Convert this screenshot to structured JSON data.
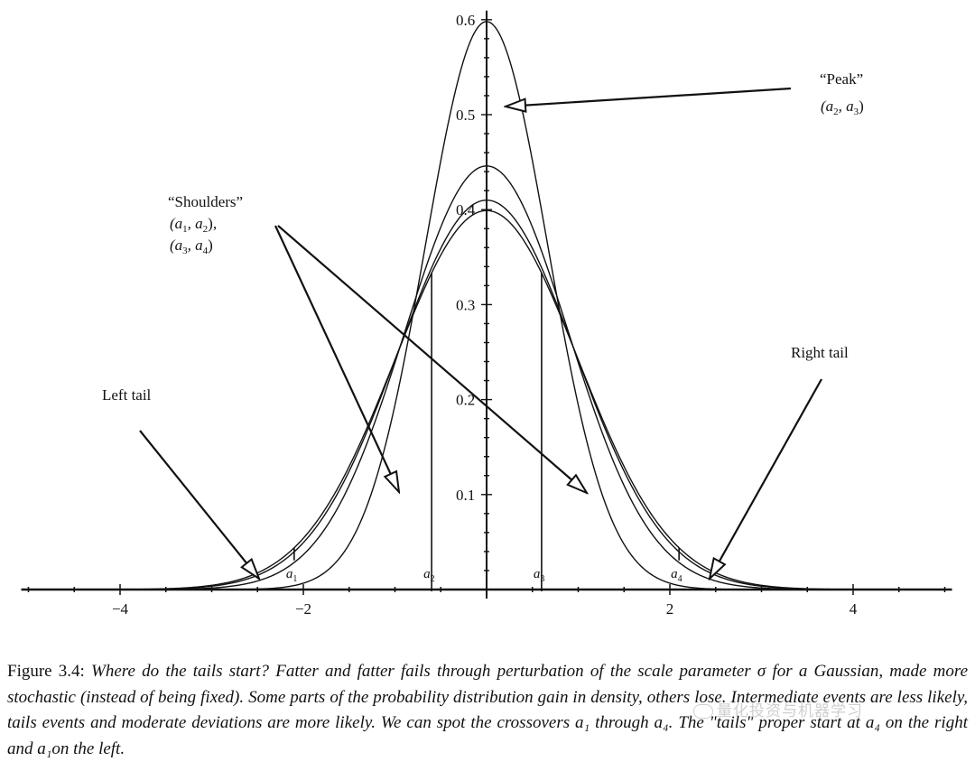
{
  "chart_data": {
    "type": "line",
    "xlim": [
      -5,
      5
    ],
    "ylim": [
      0,
      0.6
    ],
    "x_ticks": [
      -4,
      -2,
      2,
      4
    ],
    "x_tick_labels": [
      "−4",
      "−2",
      "2",
      "4"
    ],
    "y_ticks": [
      0.1,
      0.2,
      0.3,
      0.4,
      0.5,
      0.6
    ],
    "y_tick_labels": [
      "0.1",
      "0.2",
      "0.3",
      "0.4",
      "0.5",
      "0.6"
    ],
    "grid": false,
    "series": [
      {
        "sigma": 0.667,
        "peak": 0.598
      },
      {
        "sigma": 0.895,
        "peak": 0.446
      },
      {
        "sigma": 0.972,
        "peak": 0.41
      },
      {
        "sigma": 1.0,
        "peak": 0.399
      }
    ],
    "crossovers": [
      {
        "label": "a",
        "sub": "1",
        "x": -2.1
      },
      {
        "label": "a",
        "sub": "2",
        "x": -0.6
      },
      {
        "label": "a",
        "sub": "3",
        "x": 0.6
      },
      {
        "label": "a",
        "sub": "4",
        "x": 2.1
      }
    ],
    "annotations": {
      "peak_line1": "“Peak”",
      "peak_line2_a": "(a",
      "peak_line2_sub1": "2",
      "peak_line2_b": ", a",
      "peak_line2_sub2": "3",
      "peak_line2_c": ")",
      "shoulders_line1": "“Shoulders”",
      "shoulders_line2_a": "(a",
      "shoulders_line2_sub1": "1",
      "shoulders_line2_b": ", a",
      "shoulders_line2_sub2": "2",
      "shoulders_line2_c": "),",
      "shoulders_line3_a": "(a",
      "shoulders_line3_sub1": "3",
      "shoulders_line3_b": ", a",
      "shoulders_line3_sub2": "4",
      "shoulders_line3_c": ")",
      "left_tail": "Left tail",
      "right_tail": "Right tail"
    }
  },
  "caption": {
    "lead": "Figure 3.4:",
    "text": " Where do the tails start? Fatter and fatter fails through perturbation of the scale parameter σ for a Gaussian, made more stochastic (instead of being fixed). Some parts of the probability distribution gain in density, others lose. Intermediate events are less likely, tails events and moderate deviations are more likely. We can spot the crossovers a₁ through a₄. The \"tails\" proper start at a₄ on the right and a₁on the left."
  },
  "watermark": "量化投资与机器学习"
}
